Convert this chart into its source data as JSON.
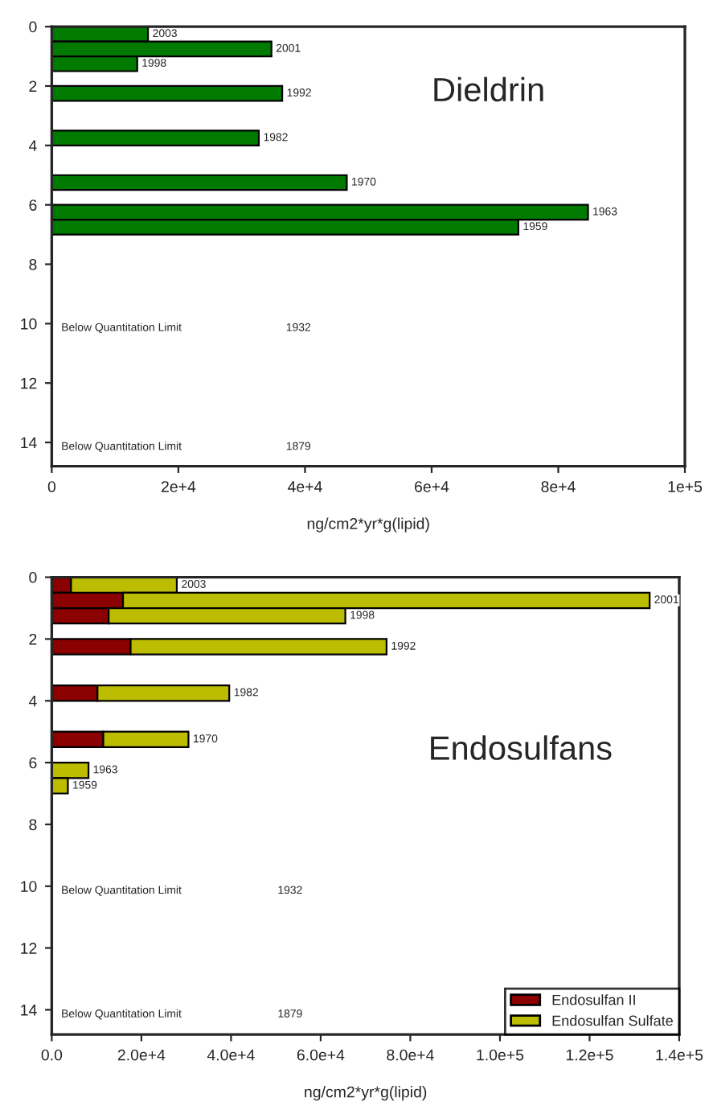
{
  "chart_data": [
    {
      "type": "bar",
      "orientation": "horizontal",
      "title": "Dieldrin",
      "xlabel": "ng/cm2*yr*g(lipid)",
      "x": [
        0.25,
        0.75,
        1.25,
        2.25,
        3.75,
        5.25,
        6.25,
        6.75
      ],
      "series": [
        {
          "color": "#007a00",
          "values": [
            15200,
            34700,
            13500,
            36400,
            32700,
            46600,
            84700,
            73700
          ]
        }
      ],
      "xlim": [
        0,
        100000
      ],
      "xticks": [
        0,
        {
          "value": 20000,
          "label": "2e+4"
        },
        {
          "value": 40000,
          "label": "4e+4"
        },
        {
          "value": 60000,
          "label": "6e+4"
        },
        {
          "value": 80000,
          "label": "8e+4"
        },
        {
          "value": 100000,
          "label": "1e+5"
        }
      ],
      "ylim": [
        14.8,
        0
      ],
      "yticks": [
        0,
        2,
        4,
        6,
        8,
        10,
        12,
        14
      ],
      "grid": false,
      "legend": false,
      "annotations": [
        {
          "text": "2003",
          "x": 15200,
          "y": 0.25
        },
        {
          "text": "2001",
          "x": 34700,
          "y": 0.75
        },
        {
          "text": "1998",
          "x": 13500,
          "y": 1.25
        },
        {
          "text": "1992",
          "x": 36400,
          "y": 2.25
        },
        {
          "text": "1982",
          "x": 32700,
          "y": 3.75
        },
        {
          "text": "1970",
          "x": 46600,
          "y": 5.25
        },
        {
          "text": "1963",
          "x": 84700,
          "y": 6.25
        },
        {
          "text": "1959",
          "x": 73700,
          "y": 6.75
        },
        "Below Quantitation Limit",
        "1932",
        "Below Quantitation Limit",
        "1879"
      ]
    },
    {
      "type": "bar",
      "orientation": "horizontal",
      "stacked": true,
      "title": "Endosulfans",
      "xlabel": "ng/cm2*yr*g(lipid)",
      "x": [
        0.25,
        0.75,
        1.25,
        2.25,
        3.75,
        5.25,
        6.25,
        6.75
      ],
      "series": [
        {
          "name": "Endosulfan II",
          "color": "#8b0000",
          "values": [
            4300,
            15900,
            12700,
            17600,
            10200,
            11500,
            0,
            0
          ]
        },
        {
          "name": "Endosulfan Sulfate",
          "color": "#bcbc00",
          "values": [
            23600,
            117500,
            52800,
            57100,
            29400,
            19000,
            8200,
            3600
          ]
        }
      ],
      "xlim": [
        0,
        140000
      ],
      "xticks": [
        {
          "value": 0,
          "label": "0.0"
        },
        {
          "value": 20000,
          "label": "2.0e+4"
        },
        {
          "value": 40000,
          "label": "4.0e+4"
        },
        {
          "value": 60000,
          "label": "6.0e+4"
        },
        {
          "value": 80000,
          "label": "8.0e+4"
        },
        {
          "value": 100000,
          "label": "1.0e+5"
        },
        {
          "value": 120000,
          "label": "1.2e+5"
        },
        {
          "value": 140000,
          "label": "1.4e+5"
        }
      ],
      "ylim": [
        14.8,
        0
      ],
      "yticks": [
        0,
        2,
        4,
        6,
        8,
        10,
        12,
        14
      ],
      "grid": false,
      "legend": "bottom right",
      "annotations": [
        {
          "text": "2003",
          "x": 27900,
          "y": 0.25
        },
        {
          "text": "2001",
          "x": 133400,
          "y": 0.75
        },
        {
          "text": "1998",
          "x": 65500,
          "y": 1.25
        },
        {
          "text": "1992",
          "x": 74700,
          "y": 2.25
        },
        {
          "text": "1982",
          "x": 39600,
          "y": 3.75
        },
        {
          "text": "1970",
          "x": 30500,
          "y": 5.25
        },
        {
          "text": "1963",
          "x": 8200,
          "y": 6.25
        },
        {
          "text": "1959",
          "x": 3600,
          "y": 6.75
        },
        "Below Quantitation Limit",
        "1932",
        "Below Quantitation Limit",
        "1879"
      ]
    }
  ]
}
